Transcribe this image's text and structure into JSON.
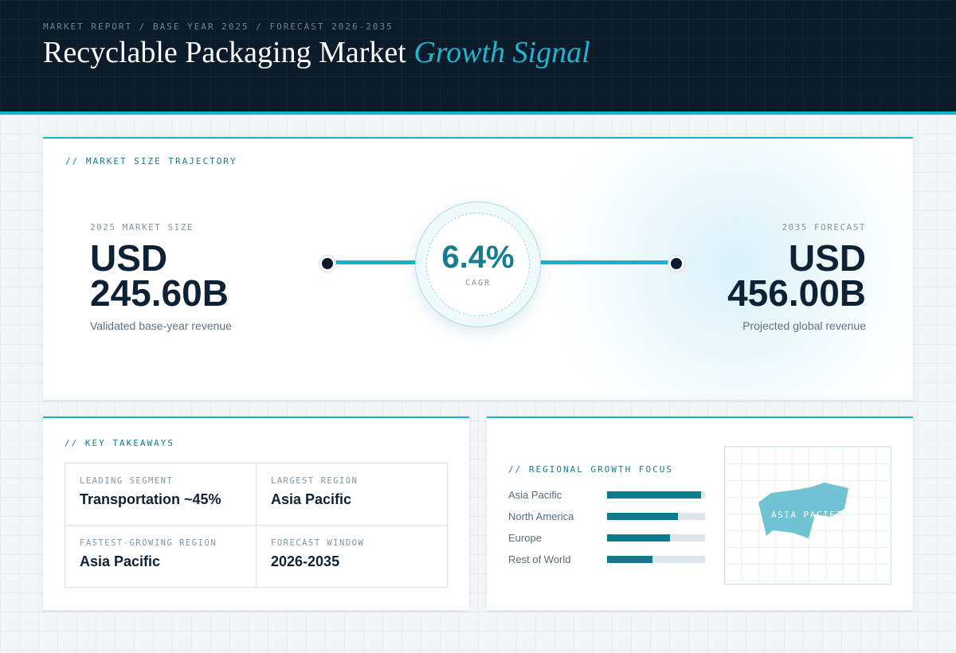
{
  "header": {
    "breadcrumb": "MARKET REPORT / BASE YEAR 2025 / FORECAST 2026-2035",
    "title_main": "Recyclable Packaging Market",
    "title_accent": "Growth Signal"
  },
  "trajectory": {
    "section_label": "// MARKET SIZE TRAJECTORY",
    "start": {
      "label": "2025 MARKET SIZE",
      "value_line1": "USD",
      "value_line2": "245.60B",
      "caption": "Validated base-year revenue"
    },
    "end": {
      "label": "2035 FORECAST",
      "value_line1": "USD",
      "value_line2": "456.00B",
      "caption": "Projected global revenue"
    },
    "cagr": {
      "value": "6.4%",
      "label": "CAGR"
    }
  },
  "takeaways": {
    "section_label": "// KEY TAKEAWAYS",
    "items": [
      {
        "label": "LEADING SEGMENT",
        "value": "Transportation ~45%"
      },
      {
        "label": "LARGEST REGION",
        "value": "Asia Pacific"
      },
      {
        "label": "FASTEST-GROWING REGION",
        "value": "Asia Pacific"
      },
      {
        "label": "FORECAST WINDOW",
        "value": "2026-2035"
      }
    ]
  },
  "regional": {
    "section_label": "// REGIONAL GROWTH FOCUS",
    "regions": [
      {
        "name": "Asia Pacific",
        "share": 0.96
      },
      {
        "name": "North America",
        "share": 0.72
      },
      {
        "name": "Europe",
        "share": 0.64
      },
      {
        "name": "Rest of World",
        "share": 0.46
      }
    ],
    "map_label": "ASIA PACIFIC"
  },
  "colors": {
    "accent": "#16b4cf",
    "header_bg": "#0b1b29",
    "bar_fill": "#0f7a8c",
    "map_fill": "#6fc3d2"
  }
}
